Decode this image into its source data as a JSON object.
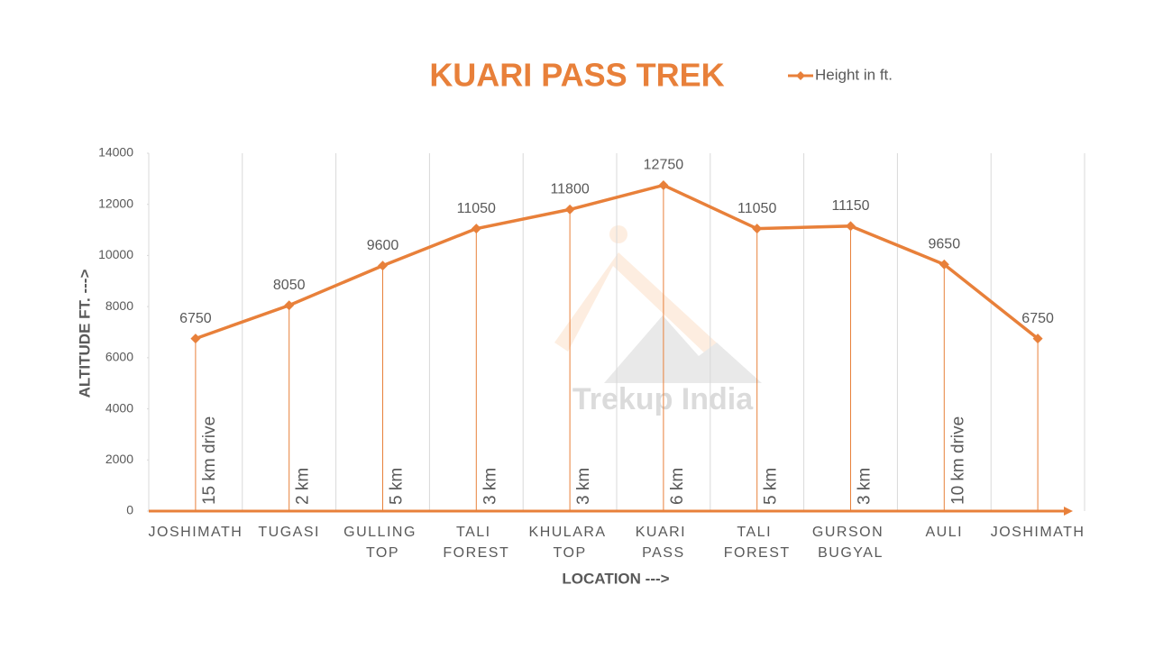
{
  "chart_data": {
    "type": "line",
    "title": "KUARI PASS TREK",
    "categories": [
      "JOSHIMATH",
      "TUGASI",
      "GULLING TOP",
      "TALI FOREST",
      "KHULARA TOP",
      "KUARI PASS",
      "TALI FOREST",
      "GURSON BUGYAL",
      "AULI",
      "JOSHIMATH"
    ],
    "series": [
      {
        "name": "Height in ft.",
        "color": "#e8803a",
        "values": [
          6750,
          8050,
          9600,
          11050,
          11800,
          12750,
          11050,
          11150,
          9650,
          6750
        ]
      }
    ],
    "segment_labels": [
      "15 km drive",
      "2 km",
      "5 km",
      "3 km",
      "3 km",
      "6 km",
      "5 km",
      "3 km",
      "10 km drive"
    ],
    "xlabel": "LOCATION --->",
    "ylabel": "ALTITUDE FT. --->",
    "ylim": [
      0,
      14000
    ],
    "yticks": [
      0,
      2000,
      4000,
      6000,
      8000,
      10000,
      12000,
      14000
    ],
    "grid": true,
    "legend": "top-right",
    "watermark": "Trekup India"
  }
}
